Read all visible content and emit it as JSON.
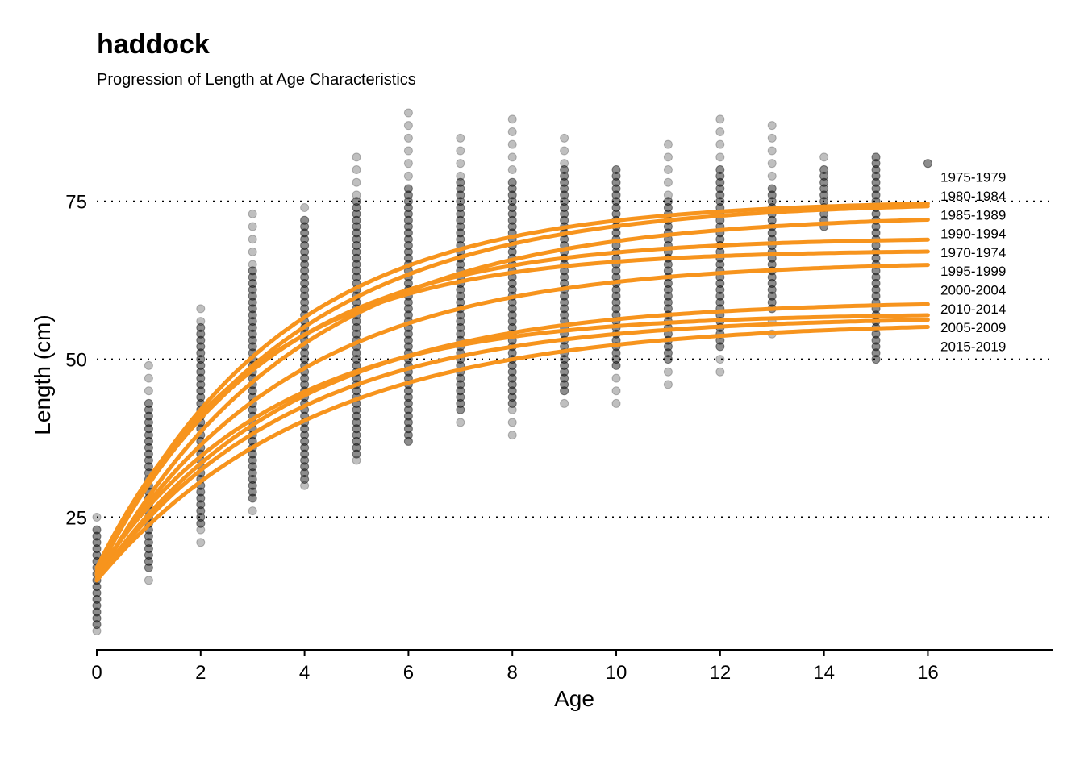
{
  "chart_data": {
    "type": "scatter",
    "title": "haddock",
    "subtitle": "Progression of Length at Age Characteristics",
    "xlabel": "Age",
    "ylabel": "Length (cm)",
    "xlim": [
      0,
      18.4
    ],
    "ylim": [
      4,
      89
    ],
    "x_ticks": [
      0,
      2,
      4,
      6,
      8,
      10,
      12,
      14,
      16
    ],
    "y_ticks": [
      25,
      50,
      75
    ],
    "grid": "horizontal dotted at y ticks",
    "colors": {
      "curves": "#f7941d",
      "points": "#000000",
      "grid": "#000000"
    },
    "point_ranges": [
      {
        "age": 0,
        "min": 7,
        "max": 25,
        "lo": 8,
        "hi": 23
      },
      {
        "age": 1,
        "min": 15,
        "max": 49,
        "lo": 17,
        "hi": 43
      },
      {
        "age": 2,
        "min": 21,
        "max": 58,
        "lo": 24,
        "hi": 55
      },
      {
        "age": 3,
        "min": 26,
        "max": 73,
        "lo": 28,
        "hi": 64
      },
      {
        "age": 4,
        "min": 30,
        "max": 74,
        "lo": 31,
        "hi": 72
      },
      {
        "age": 5,
        "min": 34,
        "max": 82,
        "lo": 35,
        "hi": 75
      },
      {
        "age": 6,
        "min": 37,
        "max": 89,
        "lo": 37,
        "hi": 77
      },
      {
        "age": 7,
        "min": 40,
        "max": 85,
        "lo": 42,
        "hi": 78
      },
      {
        "age": 8,
        "min": 38,
        "max": 88,
        "lo": 43,
        "hi": 78
      },
      {
        "age": 9,
        "min": 43,
        "max": 85,
        "lo": 45,
        "hi": 80
      },
      {
        "age": 10,
        "min": 43,
        "max": 80,
        "lo": 49,
        "hi": 80
      },
      {
        "age": 11,
        "min": 46,
        "max": 84,
        "lo": 50,
        "hi": 75
      },
      {
        "age": 12,
        "min": 48,
        "max": 88,
        "lo": 52,
        "hi": 80
      },
      {
        "age": 13,
        "min": 54,
        "max": 87,
        "lo": 58,
        "hi": 77
      },
      {
        "age": 14,
        "min": 71,
        "max": 82,
        "lo": 71,
        "hi": 80
      },
      {
        "age": 15,
        "min": 50,
        "max": 82,
        "lo": 50,
        "hi": 82
      },
      {
        "age": 16,
        "min": 81,
        "max": 81,
        "lo": 81,
        "hi": 81
      }
    ],
    "series": [
      {
        "name": "1975-1979",
        "linf": 75.2,
        "k": 0.29,
        "l0": 16
      },
      {
        "name": "1980-1984",
        "linf": 75.0,
        "k": 0.27,
        "l0": 16.5
      },
      {
        "name": "1985-1989",
        "linf": 73.0,
        "k": 0.26,
        "l0": 15
      },
      {
        "name": "1990-1994",
        "linf": 69.3,
        "k": 0.31,
        "l0": 16
      },
      {
        "name": "1970-1974",
        "linf": 67.3,
        "k": 0.33,
        "l0": 17
      },
      {
        "name": "1995-1999",
        "linf": 65.6,
        "k": 0.27,
        "l0": 15.5
      },
      {
        "name": "2000-2004",
        "linf": 59.3,
        "k": 0.27,
        "l0": 15
      },
      {
        "name": "2010-2014",
        "linf": 57.3,
        "k": 0.3,
        "l0": 16
      },
      {
        "name": "2005-2009",
        "linf": 56.8,
        "k": 0.27,
        "l0": 15
      },
      {
        "name": "2015-2019",
        "linf": 56.0,
        "k": 0.24,
        "l0": 15
      }
    ]
  }
}
